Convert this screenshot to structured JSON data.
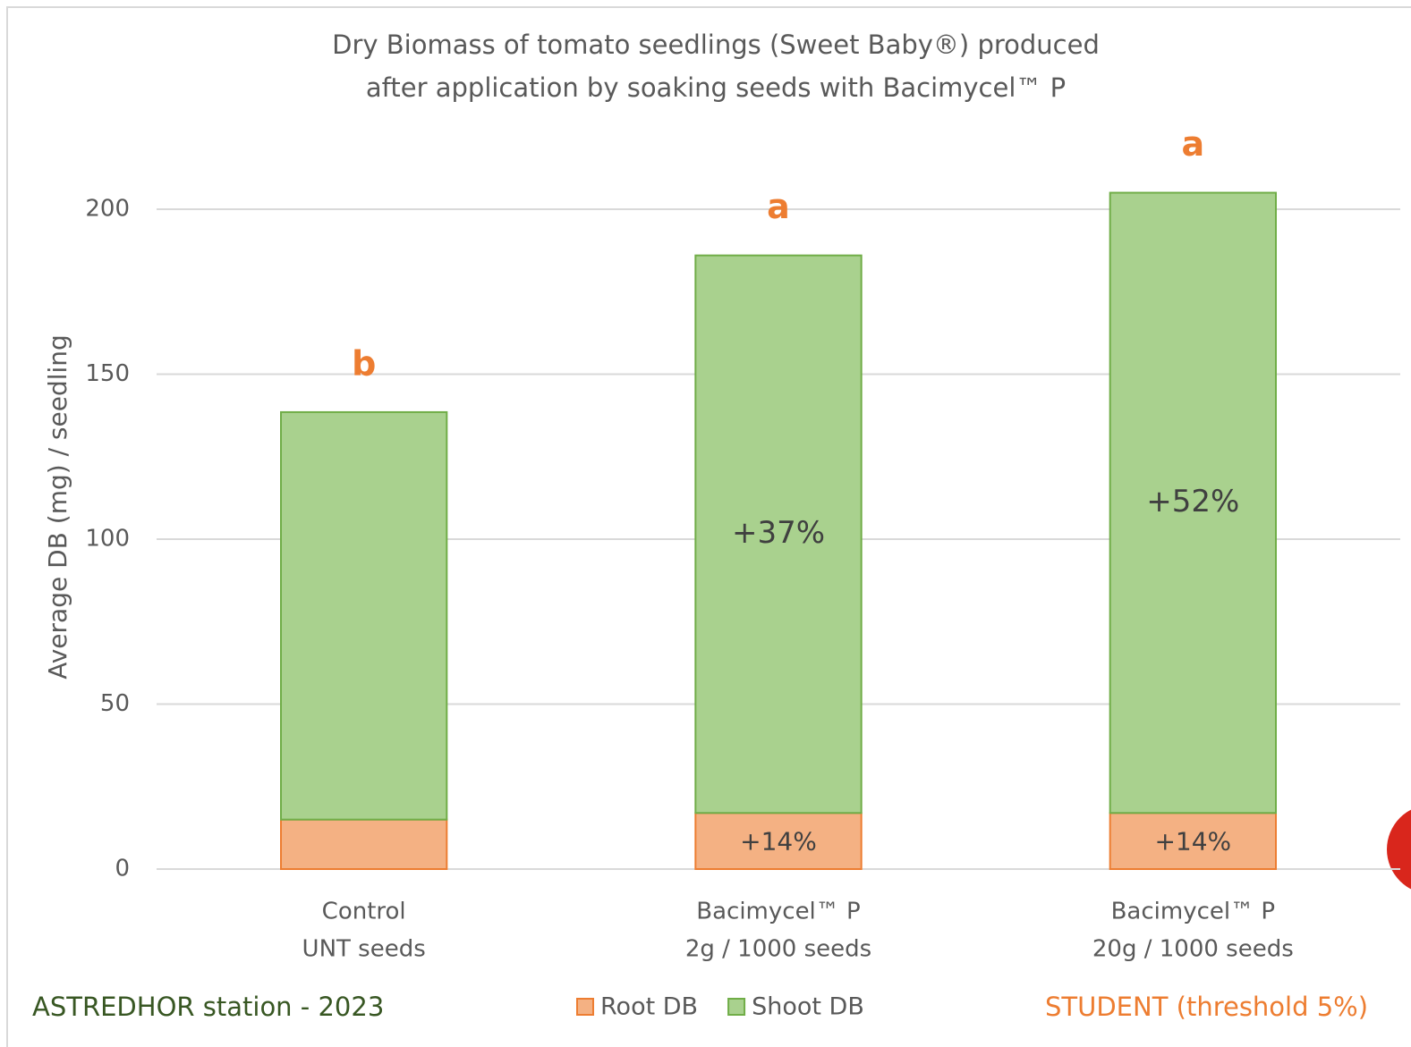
{
  "chart_data": {
    "type": "stacked_bar",
    "title": [
      "Dry Biomass of tomato seedlings (Sweet Baby®) produced",
      "after application by soaking seeds with Bacimycel™ P"
    ],
    "y_label": "Average DB (mg) / seedling",
    "categories": [
      [
        "Control",
        "UNT seeds"
      ],
      [
        "Bacimycel™ P",
        "2g / 1000 seeds"
      ],
      [
        "Bacimycel™ P",
        "20g / 1000 seeds"
      ]
    ],
    "series": [
      {
        "name": "Root DB",
        "color": "#f4b183",
        "edge": "#ed7d31",
        "values": [
          15,
          17,
          17
        ],
        "change_labels": [
          null,
          "+14%",
          "+14%"
        ]
      },
      {
        "name": "Shoot DB",
        "color": "#a9d18e",
        "edge": "#70ad47",
        "values": [
          123.5,
          169,
          188
        ],
        "change_labels": [
          null,
          "+37%",
          "+52%"
        ]
      }
    ],
    "letters": [
      "b",
      "a",
      "a"
    ],
    "letter_color": "#ed7d31",
    "ylim": [
      0,
      200
    ],
    "yticks": [
      0,
      50,
      100,
      150,
      200
    ],
    "grid": true,
    "legend": "bottom",
    "source": "ASTREDHOR station - 2023",
    "test": "STUDENT (threshold 5%)"
  }
}
